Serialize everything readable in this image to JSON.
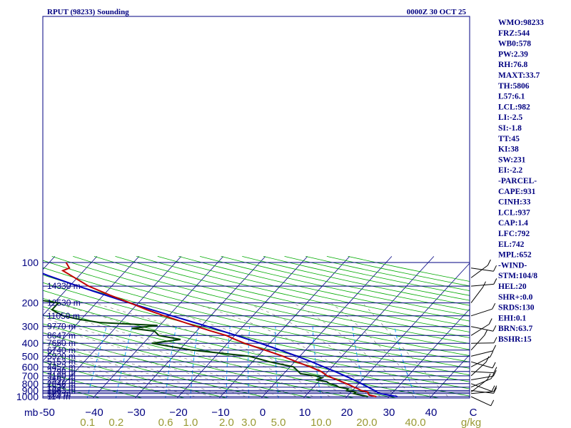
{
  "chart_data": {
    "type": "skew-t",
    "title_left": "RPUT (98233) Sounding",
    "title_right": "0000Z 30 OCT 25",
    "pressure_unit": "mb",
    "mixing_unit": "g/kg",
    "pressure_levels": [
      100,
      200,
      300,
      400,
      500,
      600,
      700,
      800,
      900,
      1000
    ],
    "pressure_tick_labels": [
      "100",
      "200",
      "300",
      "400",
      "500",
      "600",
      "700",
      "800",
      "900",
      "1000"
    ],
    "isobar_lines": [
      100,
      150,
      200,
      250,
      300,
      350,
      400,
      450,
      500,
      550,
      600,
      650,
      700,
      750,
      800,
      850,
      900,
      925,
      950,
      1000
    ],
    "height_labels": [
      {
        "p": 150,
        "text": "14330 m"
      },
      {
        "p": 200,
        "text": "12530 m"
      },
      {
        "p": 250,
        "text": "11050 m"
      },
      {
        "p": 300,
        "text": "9770 m"
      },
      {
        "p": 350,
        "text": "8647 m"
      },
      {
        "p": 400,
        "text": "7650 m"
      },
      {
        "p": 450,
        "text": "6740 m"
      },
      {
        "p": 500,
        "text": "5920 m"
      },
      {
        "p": 550,
        "text": "5153 m"
      },
      {
        "p": 600,
        "text": "4452 m"
      },
      {
        "p": 650,
        "text": "3798 m"
      },
      {
        "p": 700,
        "text": "3180 m"
      },
      {
        "p": 750,
        "text": "2597 m"
      },
      {
        "p": 800,
        "text": "2048 m"
      },
      {
        "p": 850,
        "text": "1527 m"
      },
      {
        "p": 900,
        "text": "1033 m"
      },
      {
        "p": 950,
        "text": "563 m"
      },
      {
        "p": 1000,
        "text": "114 m"
      }
    ],
    "temperature_ticks": [
      -50,
      -40,
      -30,
      -20,
      -10,
      0,
      10,
      20,
      30,
      40,
      50
    ],
    "temperature_tick_labels": [
      "-50",
      "−40",
      "−30",
      "−20",
      "−10",
      "0",
      "10",
      "20",
      "30",
      "40",
      "C"
    ],
    "mixing_ratio_labels": [
      "0.1",
      "0.2",
      "0.6",
      "1.0",
      "2.0",
      "3.0",
      "5.0",
      "10.0",
      "20.0",
      "40.0"
    ],
    "mixing_ratio_lines": [
      0.1,
      0.2,
      0.6,
      1.0,
      2.0,
      3.0,
      5.0,
      10.0,
      20.0,
      40.0
    ],
    "temperature_profile": [
      [
        1000,
        27.0
      ],
      [
        975,
        25.0
      ],
      [
        950,
        24.4
      ],
      [
        925,
        24.0
      ],
      [
        900,
        22.0
      ],
      [
        875,
        21.0
      ],
      [
        850,
        19.6
      ],
      [
        825,
        18.4
      ],
      [
        800,
        17.0
      ],
      [
        775,
        15.6
      ],
      [
        750,
        14.0
      ],
      [
        725,
        12.4
      ],
      [
        700,
        10.8
      ],
      [
        650,
        8.4
      ],
      [
        600,
        4.8
      ],
      [
        550,
        0.4
      ],
      [
        500,
        -4.0
      ],
      [
        450,
        -9.6
      ],
      [
        400,
        -16.0
      ],
      [
        375,
        -19.0
      ],
      [
        350,
        -22.0
      ],
      [
        325,
        -26.5
      ],
      [
        300,
        -31.0
      ],
      [
        250,
        -41.0
      ],
      [
        225,
        -46.5
      ],
      [
        200,
        -52.0
      ],
      [
        175,
        -58.5
      ],
      [
        150,
        -65.5
      ],
      [
        125,
        -72.0
      ],
      [
        115,
        -75.0
      ],
      [
        110,
        -74.0
      ],
      [
        100,
        -76.0
      ]
    ],
    "dewpoint_profile": [
      [
        1000,
        25.0
      ],
      [
        975,
        23.0
      ],
      [
        950,
        21.0
      ],
      [
        925,
        21.2
      ],
      [
        900,
        18.6
      ],
      [
        875,
        18.6
      ],
      [
        850,
        16.0
      ],
      [
        825,
        15.0
      ],
      [
        800,
        13.0
      ],
      [
        775,
        12.0
      ],
      [
        750,
        9.0
      ],
      [
        725,
        10.0
      ],
      [
        700,
        8.0
      ],
      [
        675,
        4.0
      ],
      [
        650,
        3.0
      ],
      [
        600,
        0.8
      ],
      [
        550,
        -6.0
      ],
      [
        500,
        -12.0
      ],
      [
        450,
        -27.0
      ],
      [
        400,
        -38.0
      ],
      [
        375,
        -32.0
      ],
      [
        350,
        -38.0
      ],
      [
        325,
        -40.0
      ],
      [
        310,
        -46.0
      ],
      [
        295,
        -40.5
      ],
      [
        280,
        -55.0
      ],
      [
        265,
        -60.5
      ],
      [
        250,
        -65.0
      ],
      [
        225,
        -69.0
      ],
      [
        200,
        -69.0
      ],
      [
        175,
        -83.0
      ],
      [
        150,
        -82.0
      ],
      [
        125,
        -88.0
      ],
      [
        115,
        -100.0
      ],
      [
        100,
        -105.0
      ]
    ],
    "parcel_profile": [
      [
        1000,
        32.0
      ],
      [
        975,
        29.6
      ],
      [
        950,
        27.3
      ],
      [
        937,
        26.6
      ],
      [
        925,
        26.2
      ],
      [
        900,
        25.2
      ],
      [
        850,
        23.0
      ],
      [
        800,
        20.6
      ],
      [
        750,
        18.0
      ],
      [
        700,
        15.0
      ],
      [
        650,
        11.7
      ],
      [
        600,
        8.0
      ],
      [
        550,
        4.0
      ],
      [
        500,
        -0.6
      ],
      [
        450,
        -6.0
      ],
      [
        400,
        -12.2
      ],
      [
        350,
        -19.6
      ],
      [
        300,
        -28.4
      ],
      [
        250,
        -39.2
      ],
      [
        200,
        -52.2
      ],
      [
        150,
        -68.0
      ],
      [
        125,
        -77.5
      ],
      [
        100,
        -88.0
      ]
    ],
    "wind_levels": [
      {
        "p": 1000
      },
      {
        "p": 950
      },
      {
        "p": 925
      },
      {
        "p": 900
      },
      {
        "p": 850
      },
      {
        "p": 800
      },
      {
        "p": 750
      },
      {
        "p": 700
      },
      {
        "p": 650
      },
      {
        "p": 600
      },
      {
        "p": 550
      },
      {
        "p": 500
      },
      {
        "p": 450
      },
      {
        "p": 400
      },
      {
        "p": 350
      },
      {
        "p": 300
      },
      {
        "p": 250
      },
      {
        "p": 200
      },
      {
        "p": 150
      },
      {
        "p": 130
      },
      {
        "p": 110
      }
    ],
    "indices": [
      "WMO:98233",
      "FRZ:544",
      "WB0:578",
      "PW:2.39",
      "RH:76.8",
      "MAXT:33.7",
      "TH:5806",
      "L57:6.1",
      "LCL:982",
      "LI:-2.5",
      "SI:-1.8",
      "TT:45",
      "KI:38",
      "SW:231",
      "EI:-2.2",
      "-PARCEL-",
      "CAPE:931",
      "CINH:33",
      "LCL:937",
      "CAP:1.4",
      "LFC:792",
      "EL:742",
      "MPL:652",
      "-WIND-",
      "STM:104/8",
      "HEL:20",
      "SHR+:0.0",
      "SRDS:130",
      "EHI:0.1",
      "BRN:63.7",
      "BSHR:15"
    ]
  },
  "colors": {
    "frame": "#000080",
    "isobar": "#000080",
    "isotherm": "#000080",
    "dry_adiabat": "#00aa00",
    "moist_adiabat": "#808080",
    "mixing_ratio": "#00a0ff",
    "temperature": "#c00000",
    "dewpoint": "#004000",
    "parcel": "#0000c0",
    "wind": "#000000",
    "mixing_label": "#999933"
  }
}
